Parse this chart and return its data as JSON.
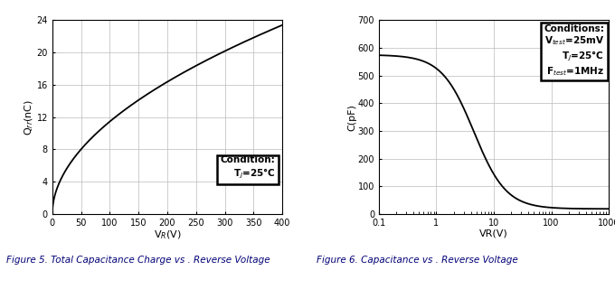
{
  "fig5": {
    "title": "Figure 5. Total Capacitance Charge vs . Reverse Voltage",
    "xlabel": "V$_R$(V)",
    "ylabel": "Q$_{rr}$(nC)",
    "xlim": [
      0,
      400
    ],
    "ylim": [
      0,
      24
    ],
    "xticks": [
      0,
      50,
      100,
      150,
      200,
      250,
      300,
      350,
      400
    ],
    "yticks": [
      0,
      4,
      8,
      12,
      16,
      20,
      24
    ],
    "condition_line1": "Condition:",
    "condition_line2": "T$_J$=25°C"
  },
  "fig6": {
    "title": "Figure 6. Capacitance vs . Reverse Voltage",
    "xlabel": "VR(V)",
    "ylabel": "C(pF)",
    "ylim": [
      0,
      700
    ],
    "yticks": [
      0,
      100,
      200,
      300,
      400,
      500,
      600,
      700
    ],
    "condition_line1": "Conditions:",
    "condition_line2": "V$_{test}$=25mV",
    "condition_line3": "T$_J$=25°C",
    "condition_line4": "F$_{test}$=1MHz",
    "Cmax": 575,
    "Cmin": 18,
    "Vmid": 4.5,
    "alpha": 1.55
  },
  "line_color": "#000000",
  "bg_color": "#ffffff",
  "grid_color": "#bbbbbb",
  "fig_caption_color": "#000077",
  "fig_caption_size": 7.5,
  "fig5_curve_a_x50": 8.0,
  "fig5_curve_a_x400": 23.4
}
